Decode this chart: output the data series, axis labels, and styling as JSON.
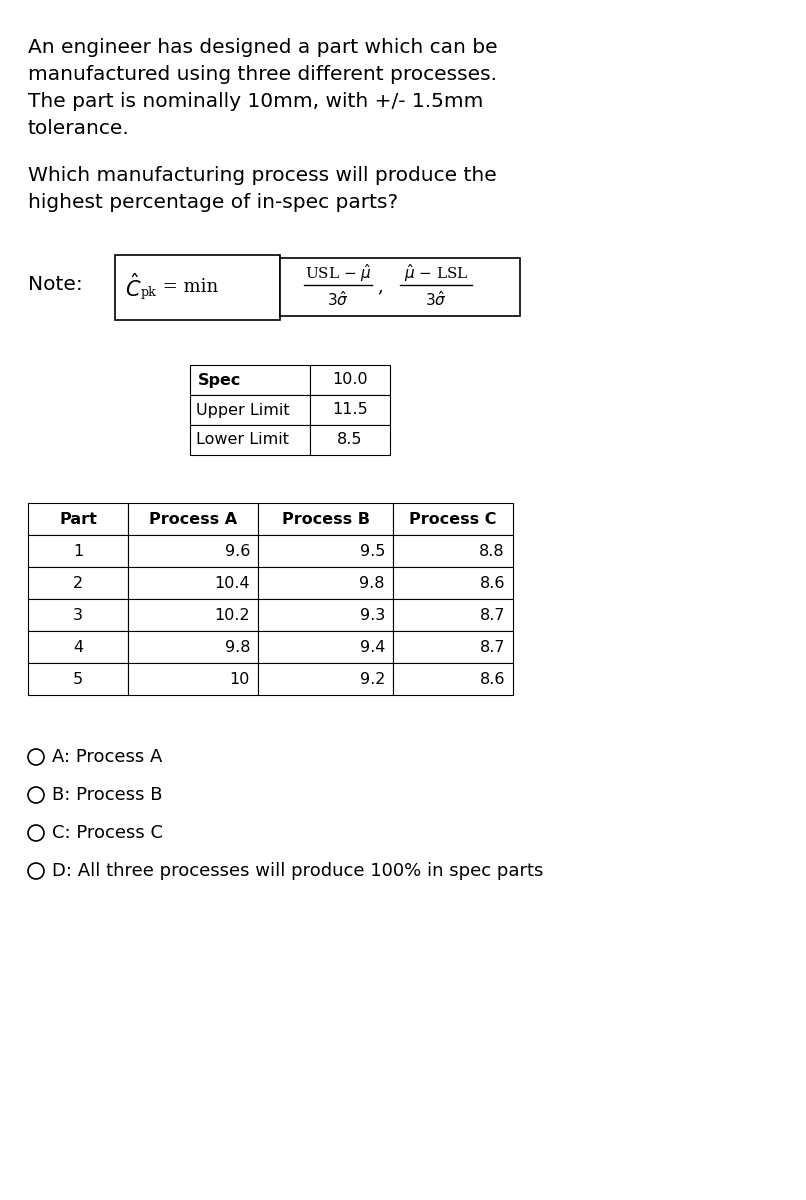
{
  "intro_text_lines": [
    "An engineer has designed a part which can be",
    "manufactured using three different processes.",
    "The part is nominally 10mm, with +/- 1.5mm",
    "tolerance."
  ],
  "question_text_lines": [
    "Which manufacturing process will produce the",
    "highest percentage of in-spec parts?"
  ],
  "spec_table_rows": [
    [
      "Spec",
      "10.0"
    ],
    [
      "Upper Limit",
      "11.5"
    ],
    [
      "Lower Limit",
      "8.5"
    ]
  ],
  "data_table_headers": [
    "Part",
    "Process A",
    "Process B",
    "Process C"
  ],
  "data_table_rows": [
    [
      "1",
      "9.6",
      "9.5",
      "8.8"
    ],
    [
      "2",
      "10.4",
      "9.8",
      "8.6"
    ],
    [
      "3",
      "10.2",
      "9.3",
      "8.7"
    ],
    [
      "4",
      "9.8",
      "9.4",
      "8.7"
    ],
    [
      "5",
      "10",
      "9.2",
      "8.6"
    ]
  ],
  "options": [
    "A: Process A",
    "B: Process B",
    "C: Process C",
    "D: All three processes will produce 100% in spec parts"
  ],
  "bg_color": "#ffffff",
  "text_color": "#000000"
}
